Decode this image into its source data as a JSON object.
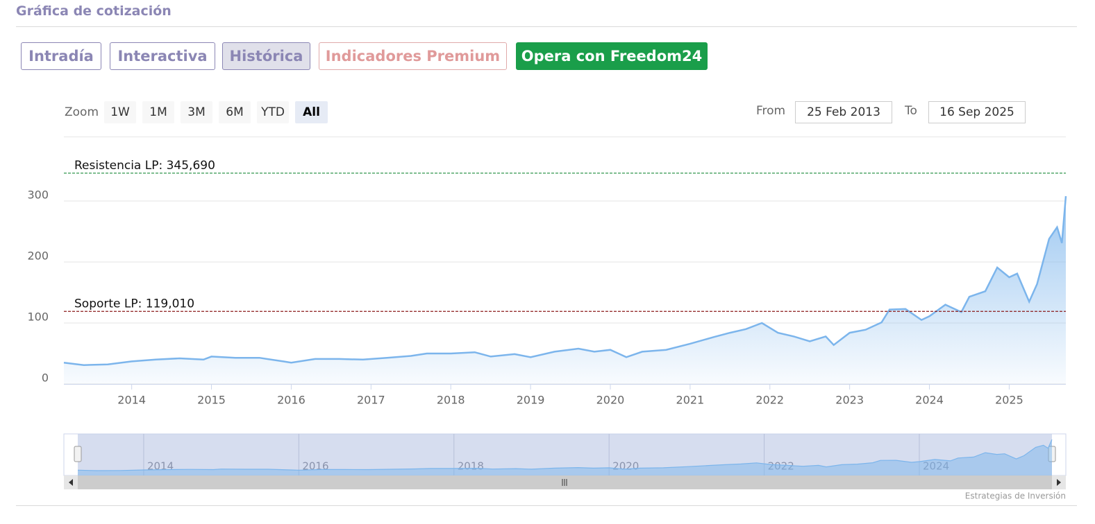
{
  "header": {
    "title": "Gráfica de cotización"
  },
  "tabs": [
    "Intradía",
    "Interactiva",
    "Histórica",
    "Indicadores Premium",
    "Opera con Freedom24"
  ],
  "active_tab": "Histórica",
  "zoom": {
    "label": "Zoom",
    "buttons": [
      "1W",
      "1M",
      "3M",
      "6M",
      "YTD",
      "All"
    ],
    "active": "All"
  },
  "range": {
    "from_label": "From",
    "from": "25 Feb 2013",
    "to_label": "To",
    "to": "16 Sep 2025"
  },
  "credit": "Estrategias de Inversión",
  "chart_data": {
    "type": "area",
    "color": "#7cb5ec",
    "x": [
      2013.15,
      2013.4,
      2013.7,
      2014.0,
      2014.3,
      2014.6,
      2014.9,
      2015.0,
      2015.3,
      2015.6,
      2015.9,
      2016.0,
      2016.3,
      2016.6,
      2016.9,
      2017.2,
      2017.5,
      2017.7,
      2018.0,
      2018.3,
      2018.5,
      2018.8,
      2019.0,
      2019.3,
      2019.6,
      2019.8,
      2020.0,
      2020.2,
      2020.4,
      2020.7,
      2021.0,
      2021.3,
      2021.5,
      2021.7,
      2021.9,
      2022.1,
      2022.3,
      2022.5,
      2022.7,
      2022.8,
      2023.0,
      2023.2,
      2023.4,
      2023.5,
      2023.7,
      2023.9,
      2024.0,
      2024.2,
      2024.4,
      2024.5,
      2024.7,
      2024.85,
      2025.0,
      2025.1,
      2025.25,
      2025.35,
      2025.5,
      2025.6,
      2025.66,
      2025.71
    ],
    "values": [
      35,
      31,
      32,
      37,
      40,
      42,
      40,
      45,
      43,
      43,
      37,
      35,
      41,
      41,
      40,
      43,
      46,
      50,
      50,
      52,
      45,
      49,
      44,
      53,
      58,
      53,
      56,
      44,
      53,
      56,
      66,
      77,
      84,
      90,
      100,
      84,
      78,
      70,
      78,
      64,
      84,
      89,
      101,
      122,
      123,
      105,
      111,
      130,
      118,
      143,
      152,
      191,
      175,
      181,
      135,
      164,
      238,
      257,
      231,
      308
    ],
    "xlim": [
      2013.15,
      2025.71
    ],
    "xticks": [
      2014,
      2015,
      2016,
      2017,
      2018,
      2019,
      2020,
      2021,
      2022,
      2023,
      2024,
      2025
    ],
    "ylim": [
      0,
      400
    ],
    "yticks": [
      0,
      100,
      200,
      300
    ],
    "grid": true,
    "reference_lines": [
      {
        "label": "Resistencia LP: 345,690",
        "value": 345.69,
        "color": "#1a8a3a"
      },
      {
        "label": "Soporte LP: 119,010",
        "value": 119.01,
        "color": "#8b1a1a"
      }
    ],
    "navigator": {
      "xticks": [
        2014,
        2016,
        2018,
        2020,
        2022,
        2024
      ]
    }
  }
}
